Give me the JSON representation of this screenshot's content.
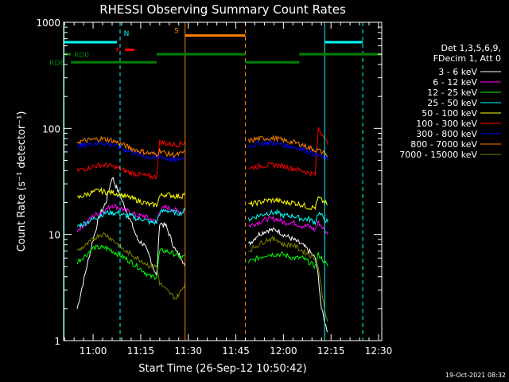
{
  "chart_data": {
    "type": "line",
    "title": "RHESSI Observing Summary Count Rates",
    "xlabel": "Start Time (26-Sep-12 10:50:42)",
    "ylabel": "Count Rate (s⁻¹ detector⁻¹)",
    "y_scale": "log",
    "ylim": [
      1,
      1000
    ],
    "xlim": [
      "10:50:42",
      "12:31:00"
    ],
    "x_ticks": [
      "11:00",
      "11:15",
      "11:30",
      "11:45",
      "12:00",
      "12:15",
      "12:30"
    ],
    "y_ticks": [
      "1",
      "10",
      "100",
      "1000"
    ],
    "legend_header": [
      "Det 1,3,5,6,9,",
      "FDecim 1, Att 0"
    ],
    "legend_position": "right",
    "timestamp": "19-Oct-2021 08:32",
    "series": [
      {
        "name": "3 - 6 keV",
        "color": "#ffffff",
        "segments": [
          {
            "t": [
              "10:55",
              "10:58",
              "11:00",
              "11:02",
              "11:04",
              "11:06",
              "11:08",
              "11:10",
              "11:12",
              "11:14",
              "11:16",
              "11:18",
              "11:20",
              "11:21",
              "11:23",
              "11:26",
              "11:28",
              "11:29"
            ],
            "v": [
              2,
              5,
              9,
              15,
              20,
              35,
              25,
              18,
              13,
              9,
              8,
              6,
              4,
              13,
              12,
              7,
              6,
              5
            ]
          },
          {
            "t": [
              "11:49",
              "11:52",
              "11:55",
              "11:58",
              "12:00",
              "12:03",
              "12:06",
              "12:08",
              "12:10",
              "12:11",
              "12:12",
              "12:13",
              "12:14"
            ],
            "v": [
              8,
              10,
              11,
              11,
              10,
              9,
              8,
              7,
              6,
              4,
              2,
              1.5,
              1.2
            ]
          }
        ]
      },
      {
        "name": "6 - 12 keV",
        "color": "#ff00ff",
        "segments": [
          {
            "t": [
              "10:55",
              "10:58",
              "11:00",
              "11:02",
              "11:04",
              "11:06",
              "11:08",
              "11:10",
              "11:12",
              "11:14",
              "11:16",
              "11:18",
              "11:20",
              "11:21",
              "11:23",
              "11:26",
              "11:28",
              "11:29"
            ],
            "v": [
              11,
              13,
              15,
              16,
              17,
              19,
              18,
              17,
              16,
              15,
              15,
              14,
              13,
              17,
              18,
              17,
              16,
              18
            ]
          },
          {
            "t": [
              "11:49",
              "11:52",
              "11:55",
              "11:58",
              "12:00",
              "12:03",
              "12:06",
              "12:08",
              "12:10",
              "12:11",
              "12:12",
              "12:13",
              "12:14"
            ],
            "v": [
              12,
              13,
              14,
              14,
              13,
              13,
              12,
              12,
              11,
              13,
              12,
              11,
              10
            ]
          }
        ]
      },
      {
        "name": "12 - 25 keV",
        "color": "#00ff00",
        "segments": [
          {
            "t": [
              "10:55",
              "10:58",
              "11:00",
              "11:02",
              "11:04",
              "11:06",
              "11:08",
              "11:10",
              "11:12",
              "11:14",
              "11:16",
              "11:18",
              "11:20",
              "11:21",
              "11:23",
              "11:26",
              "11:28",
              "11:29"
            ],
            "v": [
              5.5,
              6.5,
              7.5,
              7.5,
              7.5,
              7,
              6.5,
              6,
              5.5,
              5,
              4.5,
              4,
              4,
              7,
              7,
              6.5,
              6,
              6.5
            ]
          },
          {
            "t": [
              "11:49",
              "11:52",
              "11:55",
              "11:58",
              "12:00",
              "12:03",
              "12:06",
              "12:08",
              "12:10",
              "12:11",
              "12:12",
              "12:13",
              "12:14"
            ],
            "v": [
              5.5,
              6,
              6.5,
              6.5,
              6.5,
              6,
              6,
              5.5,
              5,
              6.5,
              6,
              5.5,
              5
            ]
          }
        ]
      },
      {
        "name": "25 - 50 keV",
        "color": "#00ffff",
        "segments": [
          {
            "t": [
              "10:55",
              "10:58",
              "11:00",
              "11:02",
              "11:04",
              "11:06",
              "11:08",
              "11:10",
              "11:12",
              "11:14",
              "11:16",
              "11:18",
              "11:20",
              "11:21",
              "11:23",
              "11:26",
              "11:28",
              "11:29"
            ],
            "v": [
              12,
              13,
              14,
              15,
              16,
              16,
              16,
              15,
              15,
              14,
              14,
              13,
              13,
              16,
              17,
              16,
              16,
              17
            ]
          },
          {
            "t": [
              "11:49",
              "11:52",
              "11:55",
              "11:58",
              "12:00",
              "12:03",
              "12:06",
              "12:08",
              "12:10",
              "12:11",
              "12:12",
              "12:13",
              "12:14"
            ],
            "v": [
              14,
              15,
              16,
              16,
              15,
              15,
              14,
              14,
              13,
              16,
              15,
              14,
              13
            ]
          }
        ]
      },
      {
        "name": "50 - 100 keV",
        "color": "#ffff00",
        "segments": [
          {
            "t": [
              "10:55",
              "10:58",
              "11:00",
              "11:02",
              "11:04",
              "11:06",
              "11:08",
              "11:10",
              "11:12",
              "11:14",
              "11:16",
              "11:18",
              "11:20",
              "11:21",
              "11:23",
              "11:26",
              "11:28",
              "11:29"
            ],
            "v": [
              22,
              24,
              25,
              26,
              25,
              25,
              24,
              23,
              22,
              21,
              20,
              19,
              19,
              23,
              24,
              23,
              23,
              25
            ]
          },
          {
            "t": [
              "11:49",
              "11:52",
              "11:55",
              "11:58",
              "12:00",
              "12:03",
              "12:06",
              "12:08",
              "12:10",
              "12:11",
              "12:12",
              "12:13",
              "12:14"
            ],
            "v": [
              19,
              20,
              21,
              21,
              20,
              20,
              19,
              18,
              18,
              22,
              21,
              20,
              19
            ]
          }
        ]
      },
      {
        "name": "100 - 300 keV",
        "color": "#ff0000",
        "segments": [
          {
            "t": [
              "10:55",
              "10:58",
              "11:00",
              "11:02",
              "11:04",
              "11:06",
              "11:08",
              "11:10",
              "11:12",
              "11:14",
              "11:16",
              "11:18",
              "11:20",
              "11:21",
              "11:23",
              "11:26",
              "11:28",
              "11:29"
            ],
            "v": [
              40,
              42,
              44,
              45,
              45,
              44,
              42,
              40,
              38,
              37,
              36,
              35,
              35,
              75,
              72,
              70,
              72,
              75
            ]
          },
          {
            "t": [
              "11:49",
              "11:52",
              "11:55",
              "11:58",
              "12:00",
              "12:03",
              "12:06",
              "12:08",
              "12:10",
              "12:11",
              "12:12",
              "12:13",
              "12:14"
            ],
            "v": [
              42,
              44,
              45,
              45,
              44,
              42,
              40,
              38,
              37,
              100,
              90,
              85,
              70
            ]
          }
        ]
      },
      {
        "name": "300 - 800 keV",
        "color": "#0000ff",
        "segments": [
          {
            "t": [
              "10:55",
              "10:58",
              "11:00",
              "11:02",
              "11:04",
              "11:06",
              "11:08",
              "11:10",
              "11:12",
              "11:14",
              "11:16",
              "11:18",
              "11:20",
              "11:21",
              "11:23",
              "11:26",
              "11:28",
              "11:29"
            ],
            "v": [
              68,
              70,
              72,
              73,
              72,
              70,
              67,
              63,
              60,
              57,
              55,
              53,
              52,
              55,
              52,
              50,
              52,
              55
            ]
          },
          {
            "t": [
              "11:49",
              "11:52",
              "11:55",
              "11:58",
              "12:00",
              "12:03",
              "12:06",
              "12:08",
              "12:10",
              "12:11",
              "12:12",
              "12:13",
              "12:14"
            ],
            "v": [
              68,
              72,
              73,
              72,
              70,
              67,
              64,
              60,
              57,
              56,
              54,
              52,
              50
            ]
          }
        ]
      },
      {
        "name": "800 - 7000 keV",
        "color": "#ff8000",
        "segments": [
          {
            "t": [
              "10:55",
              "10:58",
              "11:00",
              "11:02",
              "11:04",
              "11:06",
              "11:08",
              "11:10",
              "11:12",
              "11:14",
              "11:16",
              "11:18",
              "11:20",
              "11:21",
              "11:23",
              "11:26",
              "11:28",
              "11:29"
            ],
            "v": [
              75,
              77,
              78,
              80,
              79,
              77,
              73,
              69,
              65,
              62,
              60,
              58,
              57,
              62,
              58,
              56,
              58,
              62
            ]
          },
          {
            "t": [
              "11:49",
              "11:52",
              "11:55",
              "11:58",
              "12:00",
              "12:03",
              "12:06",
              "12:08",
              "12:10",
              "12:11",
              "12:12",
              "12:13",
              "12:14"
            ],
            "v": [
              76,
              80,
              81,
              80,
              77,
              74,
              70,
              66,
              63,
              62,
              60,
              58,
              55
            ]
          }
        ]
      },
      {
        "name": "7000 - 15000 keV",
        "color": "#808000",
        "segments": [
          {
            "t": [
              "10:55",
              "10:58",
              "11:00",
              "11:02",
              "11:04",
              "11:06",
              "11:08",
              "11:10",
              "11:12",
              "11:14",
              "11:16",
              "11:18",
              "11:20",
              "11:21",
              "11:23",
              "11:26",
              "11:28",
              "11:29"
            ],
            "v": [
              7,
              8,
              9,
              10,
              10,
              9,
              8,
              7,
              6.5,
              6,
              5.5,
              5,
              5,
              3.5,
              3,
              2.5,
              3,
              3.5
            ]
          },
          {
            "t": [
              "11:49",
              "11:52",
              "11:55",
              "11:58",
              "12:00",
              "12:03",
              "12:06",
              "12:08",
              "12:10",
              "12:11",
              "12:12",
              "12:13",
              "12:14"
            ],
            "v": [
              7,
              8,
              9,
              9,
              8,
              8,
              7,
              6.5,
              6,
              5,
              3,
              2,
              1.5
            ]
          }
        ]
      }
    ],
    "state_bars": [
      {
        "label": "",
        "color": "#00ffff",
        "level": 650,
        "intervals": [
          [
            "10:50:42",
            "11:07:30"
          ],
          [
            "12:13:00",
            "12:25:00"
          ]
        ]
      },
      {
        "label": "N",
        "color": "#00ffff",
        "level": null,
        "intervals": []
      },
      {
        "label": "F",
        "color": "#ff0000",
        "level": 550,
        "intervals": [
          [
            "11:10:00",
            "11:13:00"
          ]
        ]
      },
      {
        "label": "S",
        "color": "#ff8000",
        "level": 750,
        "intervals": [
          [
            "11:29:00",
            "11:48:00"
          ]
        ]
      },
      {
        "label": "RD0",
        "color": "#008000",
        "level": 500,
        "intervals": [
          [
            "10:50:42",
            "10:53:00"
          ]
        ]
      },
      {
        "label": "RD6",
        "color": "#008000",
        "level": 420,
        "intervals": [
          [
            "10:53:00",
            "11:20:00"
          ],
          [
            "11:48:00",
            "12:05:00"
          ]
        ]
      },
      {
        "label": "",
        "color": "#008000",
        "level": 500,
        "intervals": [
          [
            "11:20:00",
            "11:48:00"
          ],
          [
            "12:05:00",
            "12:31:00"
          ]
        ]
      }
    ],
    "vertical_markers": [
      {
        "time": "10:50:50",
        "color": "#00ffff",
        "style": "solid"
      },
      {
        "time": "11:08:30",
        "color": "#00ffff",
        "style": "dashed"
      },
      {
        "time": "11:29:00",
        "color": "#ff8000",
        "style": "solid"
      },
      {
        "time": "11:48:00",
        "color": "#ff8000",
        "style": "dashed"
      },
      {
        "time": "12:13:00",
        "color": "#00ffff",
        "style": "solid"
      },
      {
        "time": "12:25:00",
        "color": "#00ffff",
        "style": "dashed"
      }
    ]
  }
}
